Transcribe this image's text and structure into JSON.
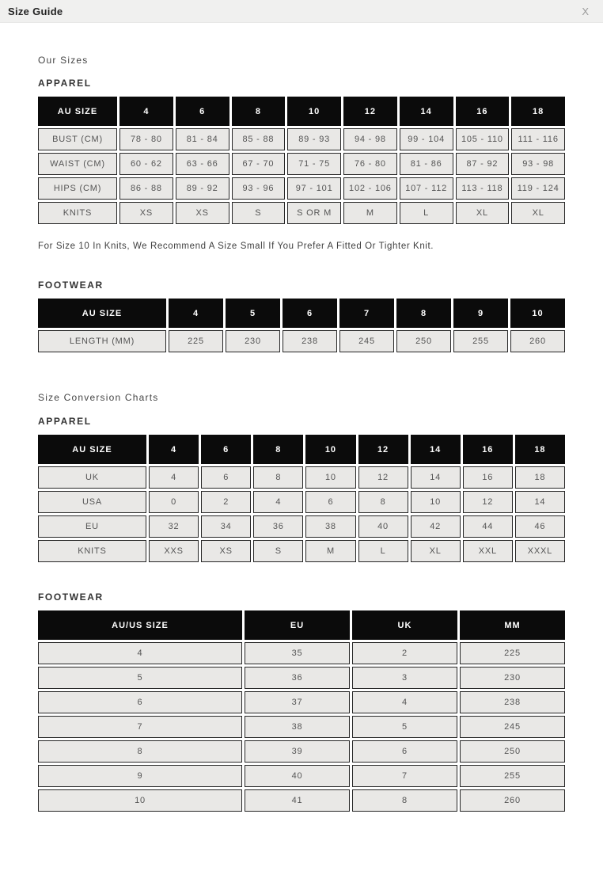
{
  "modal": {
    "title": "Size Guide",
    "close_label": "X"
  },
  "sections": {
    "our_sizes_title": "Our Sizes",
    "conversion_title": "Size Conversion Charts",
    "apparel_label": "APPAREL",
    "footwear_label": "FOOTWEAR",
    "knits_note": "For Size 10 In Knits, We Recommend A Size Small If You Prefer A Fitted Or Tighter Knit."
  },
  "colors": {
    "header_bar_bg": "#f0f0ef",
    "table_header_bg": "#0b0b0b",
    "table_header_text": "#ffffff",
    "cell_bg": "#e9e8e6",
    "cell_border": "#262626",
    "cell_text": "#555555"
  },
  "tables": {
    "our_sizes_apparel": {
      "header": [
        "AU SIZE",
        "4",
        "6",
        "8",
        "10",
        "12",
        "14",
        "16",
        "18"
      ],
      "rows": [
        [
          "BUST (CM)",
          "78 - 80",
          "81 - 84",
          "85 - 88",
          "89 - 93",
          "94 - 98",
          "99 - 104",
          "105 - 110",
          "111 - 116"
        ],
        [
          "WAIST (CM)",
          "60 - 62",
          "63 - 66",
          "67 - 70",
          "71 - 75",
          "76 - 80",
          "81 - 86",
          "87 - 92",
          "93 - 98"
        ],
        [
          "HIPS (CM)",
          "86 - 88",
          "89 - 92",
          "93 - 96",
          "97 - 101",
          "102 - 106",
          "107 - 112",
          "113 - 118",
          "119 - 124"
        ],
        [
          "KNITS",
          "XS",
          "XS",
          "S",
          "S OR M",
          "M",
          "L",
          "XL",
          "XL"
        ]
      ]
    },
    "our_sizes_footwear": {
      "header": [
        "AU SIZE",
        "4",
        "5",
        "6",
        "7",
        "8",
        "9",
        "10"
      ],
      "rows": [
        [
          "LENGTH (MM)",
          "225",
          "230",
          "238",
          "245",
          "250",
          "255",
          "260"
        ]
      ]
    },
    "conversion_apparel": {
      "header": [
        "AU SIZE",
        "4",
        "6",
        "8",
        "10",
        "12",
        "14",
        "16",
        "18"
      ],
      "rows": [
        [
          "UK",
          "4",
          "6",
          "8",
          "10",
          "12",
          "14",
          "16",
          "18"
        ],
        [
          "USA",
          "0",
          "2",
          "4",
          "6",
          "8",
          "10",
          "12",
          "14"
        ],
        [
          "EU",
          "32",
          "34",
          "36",
          "38",
          "40",
          "42",
          "44",
          "46"
        ],
        [
          "KNITS",
          "XXS",
          "XS",
          "S",
          "M",
          "L",
          "XL",
          "XXL",
          "XXXL"
        ]
      ]
    },
    "conversion_footwear": {
      "header": [
        "AU/US SIZE",
        "EU",
        "UK",
        "MM"
      ],
      "rows": [
        [
          "4",
          "35",
          "2",
          "225"
        ],
        [
          "5",
          "36",
          "3",
          "230"
        ],
        [
          "6",
          "37",
          "4",
          "238"
        ],
        [
          "7",
          "38",
          "5",
          "245"
        ],
        [
          "8",
          "39",
          "6",
          "250"
        ],
        [
          "9",
          "40",
          "7",
          "255"
        ],
        [
          "10",
          "41",
          "8",
          "260"
        ]
      ]
    }
  }
}
